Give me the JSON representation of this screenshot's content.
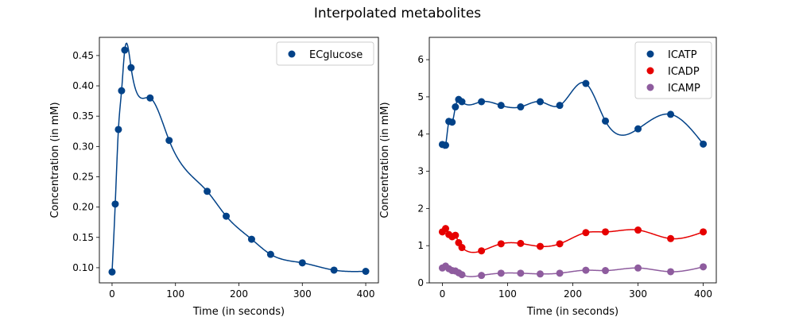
{
  "figure": {
    "title": "Interpolated metabolites"
  },
  "chart_data": [
    {
      "type": "scatter",
      "title": "",
      "xlabel": "Time (in seconds)",
      "ylabel": "Concentration (in mM)",
      "xlim": [
        -20,
        420
      ],
      "ylim": [
        0.075,
        0.48
      ],
      "xticks": [
        0,
        100,
        200,
        300,
        400
      ],
      "yticks": [
        0.1,
        0.15,
        0.2,
        0.25,
        0.3,
        0.35,
        0.4,
        0.45
      ],
      "legend_position": "top-right",
      "grid": false,
      "series": [
        {
          "name": "ECglucose",
          "color": "#024288",
          "x": [
            0,
            5,
            10,
            15,
            20,
            30,
            60,
            90,
            150,
            180,
            220,
            250,
            300,
            350,
            400
          ],
          "y": [
            0.093,
            0.205,
            0.328,
            0.392,
            0.459,
            0.43,
            0.38,
            0.31,
            0.226,
            0.185,
            0.147,
            0.122,
            0.108,
            0.096,
            0.094
          ]
        }
      ]
    },
    {
      "type": "scatter",
      "title": "",
      "xlabel": "Time (in seconds)",
      "ylabel": "Concentration (in mM)",
      "xlim": [
        -20,
        420
      ],
      "ylim": [
        0,
        6.6
      ],
      "xticks": [
        0,
        100,
        200,
        300,
        400
      ],
      "yticks": [
        0,
        1,
        2,
        3,
        4,
        5,
        6
      ],
      "legend_position": "top-right",
      "grid": false,
      "series": [
        {
          "name": "ICATP",
          "color": "#024288",
          "x": [
            0,
            5,
            10,
            15,
            20,
            25,
            30,
            60,
            90,
            120,
            150,
            180,
            220,
            250,
            300,
            350,
            400
          ],
          "y": [
            3.72,
            3.7,
            4.34,
            4.32,
            4.73,
            4.93,
            4.87,
            4.87,
            4.77,
            4.73,
            4.87,
            4.77,
            5.36,
            4.35,
            4.14,
            4.53,
            3.73
          ]
        },
        {
          "name": "ICADP",
          "color": "#e60000",
          "x": [
            0,
            5,
            10,
            15,
            20,
            25,
            30,
            60,
            90,
            120,
            150,
            180,
            220,
            250,
            300,
            350,
            400
          ],
          "y": [
            1.37,
            1.46,
            1.3,
            1.24,
            1.28,
            1.08,
            0.95,
            0.86,
            1.05,
            1.06,
            0.98,
            1.05,
            1.35,
            1.37,
            1.42,
            1.19,
            1.37
          ]
        },
        {
          "name": "ICAMP",
          "color": "#8e5c9e",
          "x": [
            0,
            5,
            10,
            15,
            20,
            25,
            30,
            60,
            90,
            120,
            150,
            180,
            220,
            250,
            300,
            350,
            400
          ],
          "y": [
            0.4,
            0.45,
            0.38,
            0.33,
            0.32,
            0.27,
            0.22,
            0.2,
            0.26,
            0.26,
            0.24,
            0.26,
            0.34,
            0.33,
            0.4,
            0.3,
            0.43
          ]
        }
      ]
    }
  ]
}
